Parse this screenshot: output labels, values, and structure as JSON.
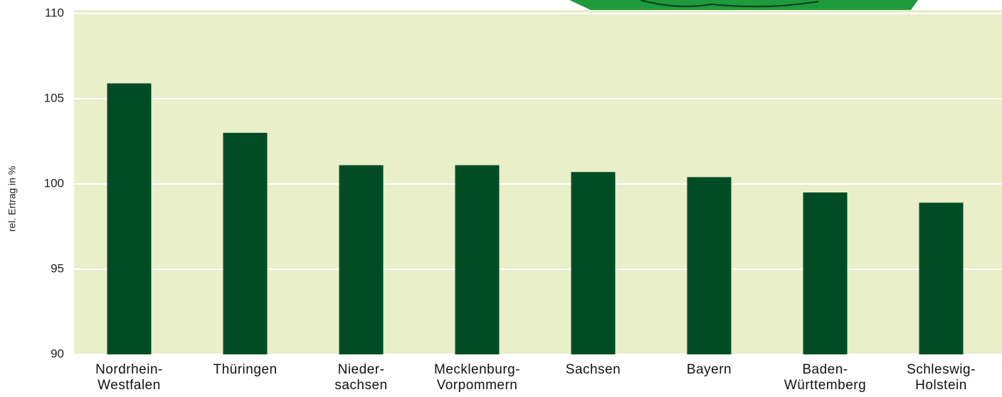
{
  "chart_data": {
    "type": "bar",
    "y_label": "rel. Ertrag in %",
    "categories": [
      "Nordrhein-\nWestfalen",
      "Thüringen",
      "Nieder-\nsachsen",
      "Mecklenburg-\nVorpommern",
      "Sachsen",
      "Bayern",
      "Baden-\nWürttemberg",
      "Schleswig-\nHolstein"
    ],
    "values": [
      105.9,
      103.0,
      101.1,
      101.1,
      100.7,
      100.4,
      99.5,
      98.9
    ],
    "color": "#004d25",
    "background": "#e8efc9",
    "ylim": [
      90,
      110
    ],
    "yticks": [
      90,
      95,
      100,
      105,
      110
    ],
    "grid": true
  }
}
